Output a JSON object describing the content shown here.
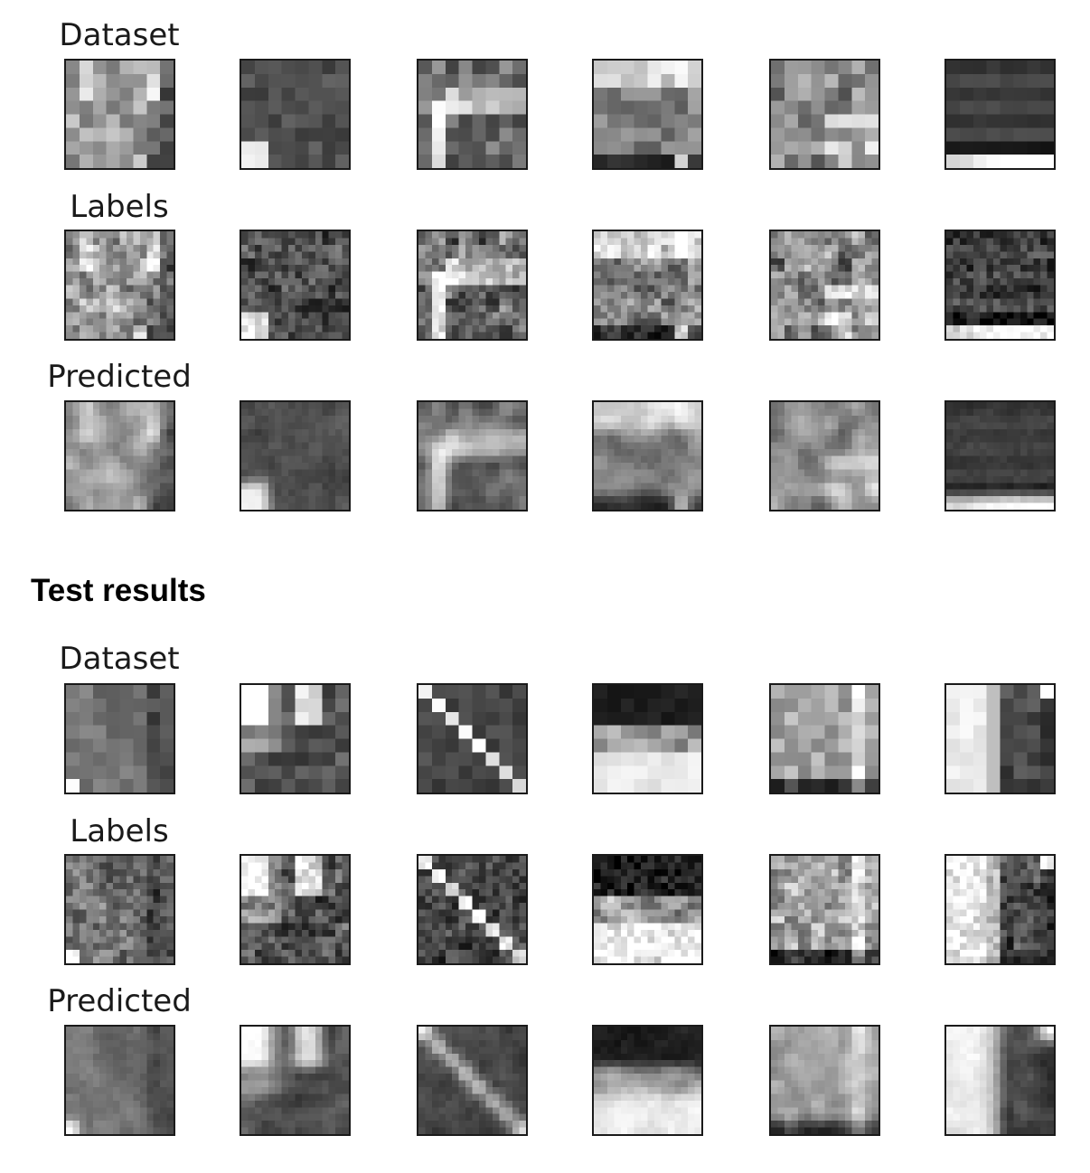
{
  "train": {
    "row_labels": [
      "Dataset",
      "Labels",
      "Predicted"
    ]
  },
  "test": {
    "heading": "Test results",
    "row_labels": [
      "Dataset",
      "Labels",
      "Predicted"
    ]
  },
  "colormap": "grayscale",
  "grid": {
    "rows_per_block": 3,
    "columns": 6
  }
}
